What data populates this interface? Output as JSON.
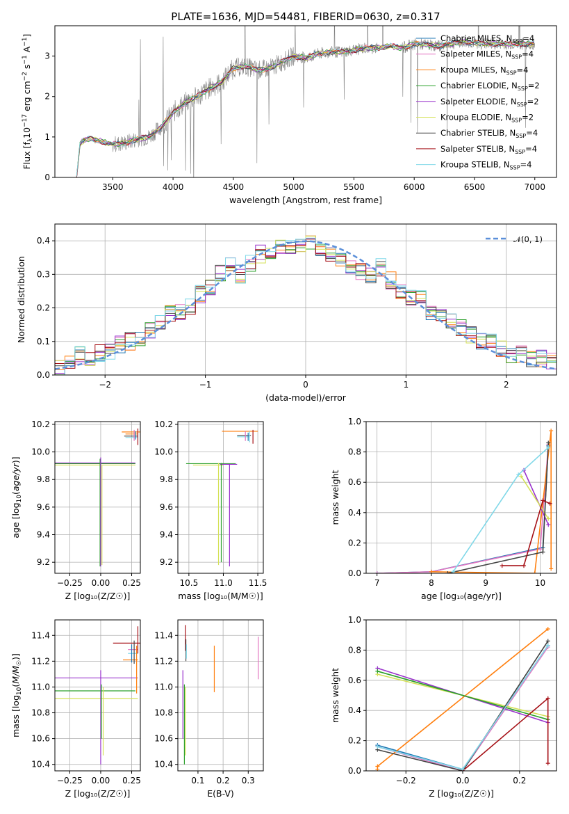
{
  "title": "PLATE=1636, MJD=54481, FIBERID=0630, z=0.317",
  "colors": {
    "chabrier_miles": "#1f77b4",
    "salpeter_miles": "#e377c2",
    "kroupa_miles": "#ff7f0e",
    "chabrier_elodie": "#2ca02c",
    "salpeter_elodie": "#9932cc",
    "kroupa_elodie": "#d4e157",
    "chabrier_stelib": "#444444",
    "salpeter_stelib": "#a50f15",
    "kroupa_stelib": "#80d8e8",
    "gauss": "#5b8fd9",
    "data": "#808080"
  },
  "chart_data": [
    {
      "type": "line",
      "id": "spectrum",
      "title": "PLATE=1636, MJD=54481, FIBERID=0630, z=0.317",
      "xlabel": "wavelength [Angstrom, rest frame]",
      "ylabel": "Flux [f",
      "xlim": [
        3020,
        7180
      ],
      "ylim": [
        0,
        3.75
      ],
      "xticks": [
        3500,
        4000,
        4500,
        5000,
        5500,
        6000,
        6500,
        7000
      ],
      "yticks": [
        0,
        1,
        2,
        3
      ],
      "legend_position": "right",
      "legend": [
        "Chabrier MILES, N_SSP=4",
        "Salpeter MILES, N_SSP=4",
        "Kroupa MILES, N_SSP=4",
        "Chabrier ELODIE, N_SSP=2",
        "Salpeter ELODIE, N_SSP=2",
        "Kroupa ELODIE, N_SSP=2",
        "Chabrier STELIB, N_SSP=4",
        "Salpeter STELIB, N_SSP=4",
        "Kroupa STELIB, N_SSP=4"
      ],
      "continuum": {
        "x": [
          3200,
          3230,
          3300,
          3400,
          3500,
          3600,
          3700,
          3800,
          3900,
          4000,
          4100,
          4200,
          4300,
          4400,
          4500,
          4600,
          4700,
          4800,
          4900,
          5000,
          5100,
          5200,
          5300,
          5400,
          5500,
          5600,
          5700,
          5800,
          5900,
          6000,
          6200,
          6400,
          6600,
          6800,
          7000
        ],
        "y": [
          0.0,
          0.88,
          0.95,
          0.9,
          0.82,
          0.85,
          0.95,
          1.0,
          1.25,
          1.6,
          1.85,
          2.0,
          2.2,
          2.35,
          2.7,
          2.75,
          2.65,
          2.7,
          2.85,
          3.0,
          2.95,
          3.05,
          3.1,
          3.1,
          3.15,
          3.2,
          3.2,
          3.25,
          3.2,
          3.3,
          3.25,
          3.35,
          3.3,
          3.3,
          3.3
        ]
      }
    },
    {
      "type": "line",
      "id": "residuals",
      "xlabel": "(data-model)/error",
      "ylabel": "Normed distribution",
      "xlim": [
        -2.5,
        2.5
      ],
      "ylim": [
        0,
        0.45
      ],
      "xticks": [
        -2,
        -1,
        0,
        1,
        2
      ],
      "yticks": [
        0.0,
        0.1,
        0.2,
        0.3,
        0.4
      ],
      "legend": [
        "𝒩(0, 1)"
      ],
      "legend_position": "top-right",
      "bins": [
        -2.5,
        -2.4,
        -2.3,
        -2.2,
        -2.1,
        -2.0,
        -1.9,
        -1.8,
        -1.7,
        -1.6,
        -1.5,
        -1.4,
        -1.3,
        -1.2,
        -1.1,
        -1.0,
        -0.9,
        -0.8,
        -0.7,
        -0.6,
        -0.5,
        -0.4,
        -0.3,
        -0.2,
        -0.1,
        0.0,
        0.1,
        0.2,
        0.3,
        0.4,
        0.5,
        0.6,
        0.7,
        0.8,
        0.9,
        1.0,
        1.1,
        1.2,
        1.3,
        1.4,
        1.5,
        1.6,
        1.7,
        1.8,
        1.9,
        2.0,
        2.1,
        2.2,
        2.3,
        2.4,
        2.5
      ],
      "histogram": [
        0.02,
        0.035,
        0.06,
        0.05,
        0.065,
        0.07,
        0.09,
        0.1,
        0.11,
        0.13,
        0.16,
        0.18,
        0.19,
        0.2,
        0.24,
        0.26,
        0.3,
        0.33,
        0.3,
        0.33,
        0.36,
        0.36,
        0.38,
        0.38,
        0.39,
        0.4,
        0.37,
        0.36,
        0.34,
        0.33,
        0.31,
        0.3,
        0.32,
        0.28,
        0.25,
        0.23,
        0.23,
        0.19,
        0.18,
        0.16,
        0.14,
        0.12,
        0.1,
        0.1,
        0.08,
        0.06,
        0.06,
        0.05,
        0.05,
        0.04
      ]
    },
    {
      "type": "scatter",
      "id": "age_vs_Z",
      "xlabel": "Z [log₁₀(Z/Z☉)]",
      "ylabel": "age [log₁₀(age/yr)]",
      "xlim": [
        -0.37,
        0.32
      ],
      "ylim": [
        9.12,
        10.22
      ],
      "xticks": [
        -0.25,
        0.0,
        0.25
      ],
      "yticks": [
        9.2,
        9.4,
        9.6,
        9.8,
        10.0,
        10.2
      ]
    },
    {
      "type": "scatter",
      "id": "age_vs_mass",
      "xlabel": "mass [log₁₀(M/M☉)]",
      "xlim": [
        10.34,
        11.58
      ],
      "ylim": [
        9.12,
        10.22
      ],
      "xticks": [
        10.5,
        11.0,
        11.5
      ],
      "yticks": [
        9.2,
        9.4,
        9.6,
        9.8,
        10.0,
        10.2
      ]
    },
    {
      "type": "line",
      "id": "weight_vs_age",
      "xlabel": "age [log₁₀(age/yr)]",
      "ylabel": "mass weight",
      "xlim": [
        6.8,
        10.3
      ],
      "ylim": [
        0,
        1
      ],
      "xticks": [
        7,
        8,
        9,
        10
      ],
      "yticks": [
        0.0,
        0.2,
        0.4,
        0.6,
        0.8,
        1.0
      ]
    },
    {
      "type": "scatter",
      "id": "mass_vs_Z",
      "xlabel": "Z [log₁₀(Z/Z☉)]",
      "ylabel": "mass [log₁₀(M/M☉)]",
      "xlim": [
        -0.37,
        0.32
      ],
      "ylim": [
        10.35,
        11.52
      ],
      "xticks": [
        -0.25,
        0.0,
        0.25
      ],
      "yticks": [
        10.4,
        10.6,
        10.8,
        11.0,
        11.2,
        11.4
      ]
    },
    {
      "type": "scatter",
      "id": "mass_vs_ebv",
      "xlabel": "E(B-V)",
      "xlim": [
        0.02,
        0.36
      ],
      "ylim": [
        10.35,
        11.52
      ],
      "xticks": [
        0.1,
        0.2,
        0.3
      ],
      "yticks": [
        10.4,
        10.6,
        10.8,
        11.0,
        11.2,
        11.4
      ]
    },
    {
      "type": "line",
      "id": "weight_vs_Z",
      "xlabel": "Z [log₁₀(Z/Z☉)]",
      "ylabel": "mass weight",
      "xlim": [
        -0.34,
        0.33
      ],
      "ylim": [
        0,
        1
      ],
      "xticks": [
        -0.2,
        0.0,
        0.2
      ],
      "yticks": [
        0.0,
        0.2,
        0.4,
        0.6,
        0.8,
        1.0
      ]
    }
  ]
}
